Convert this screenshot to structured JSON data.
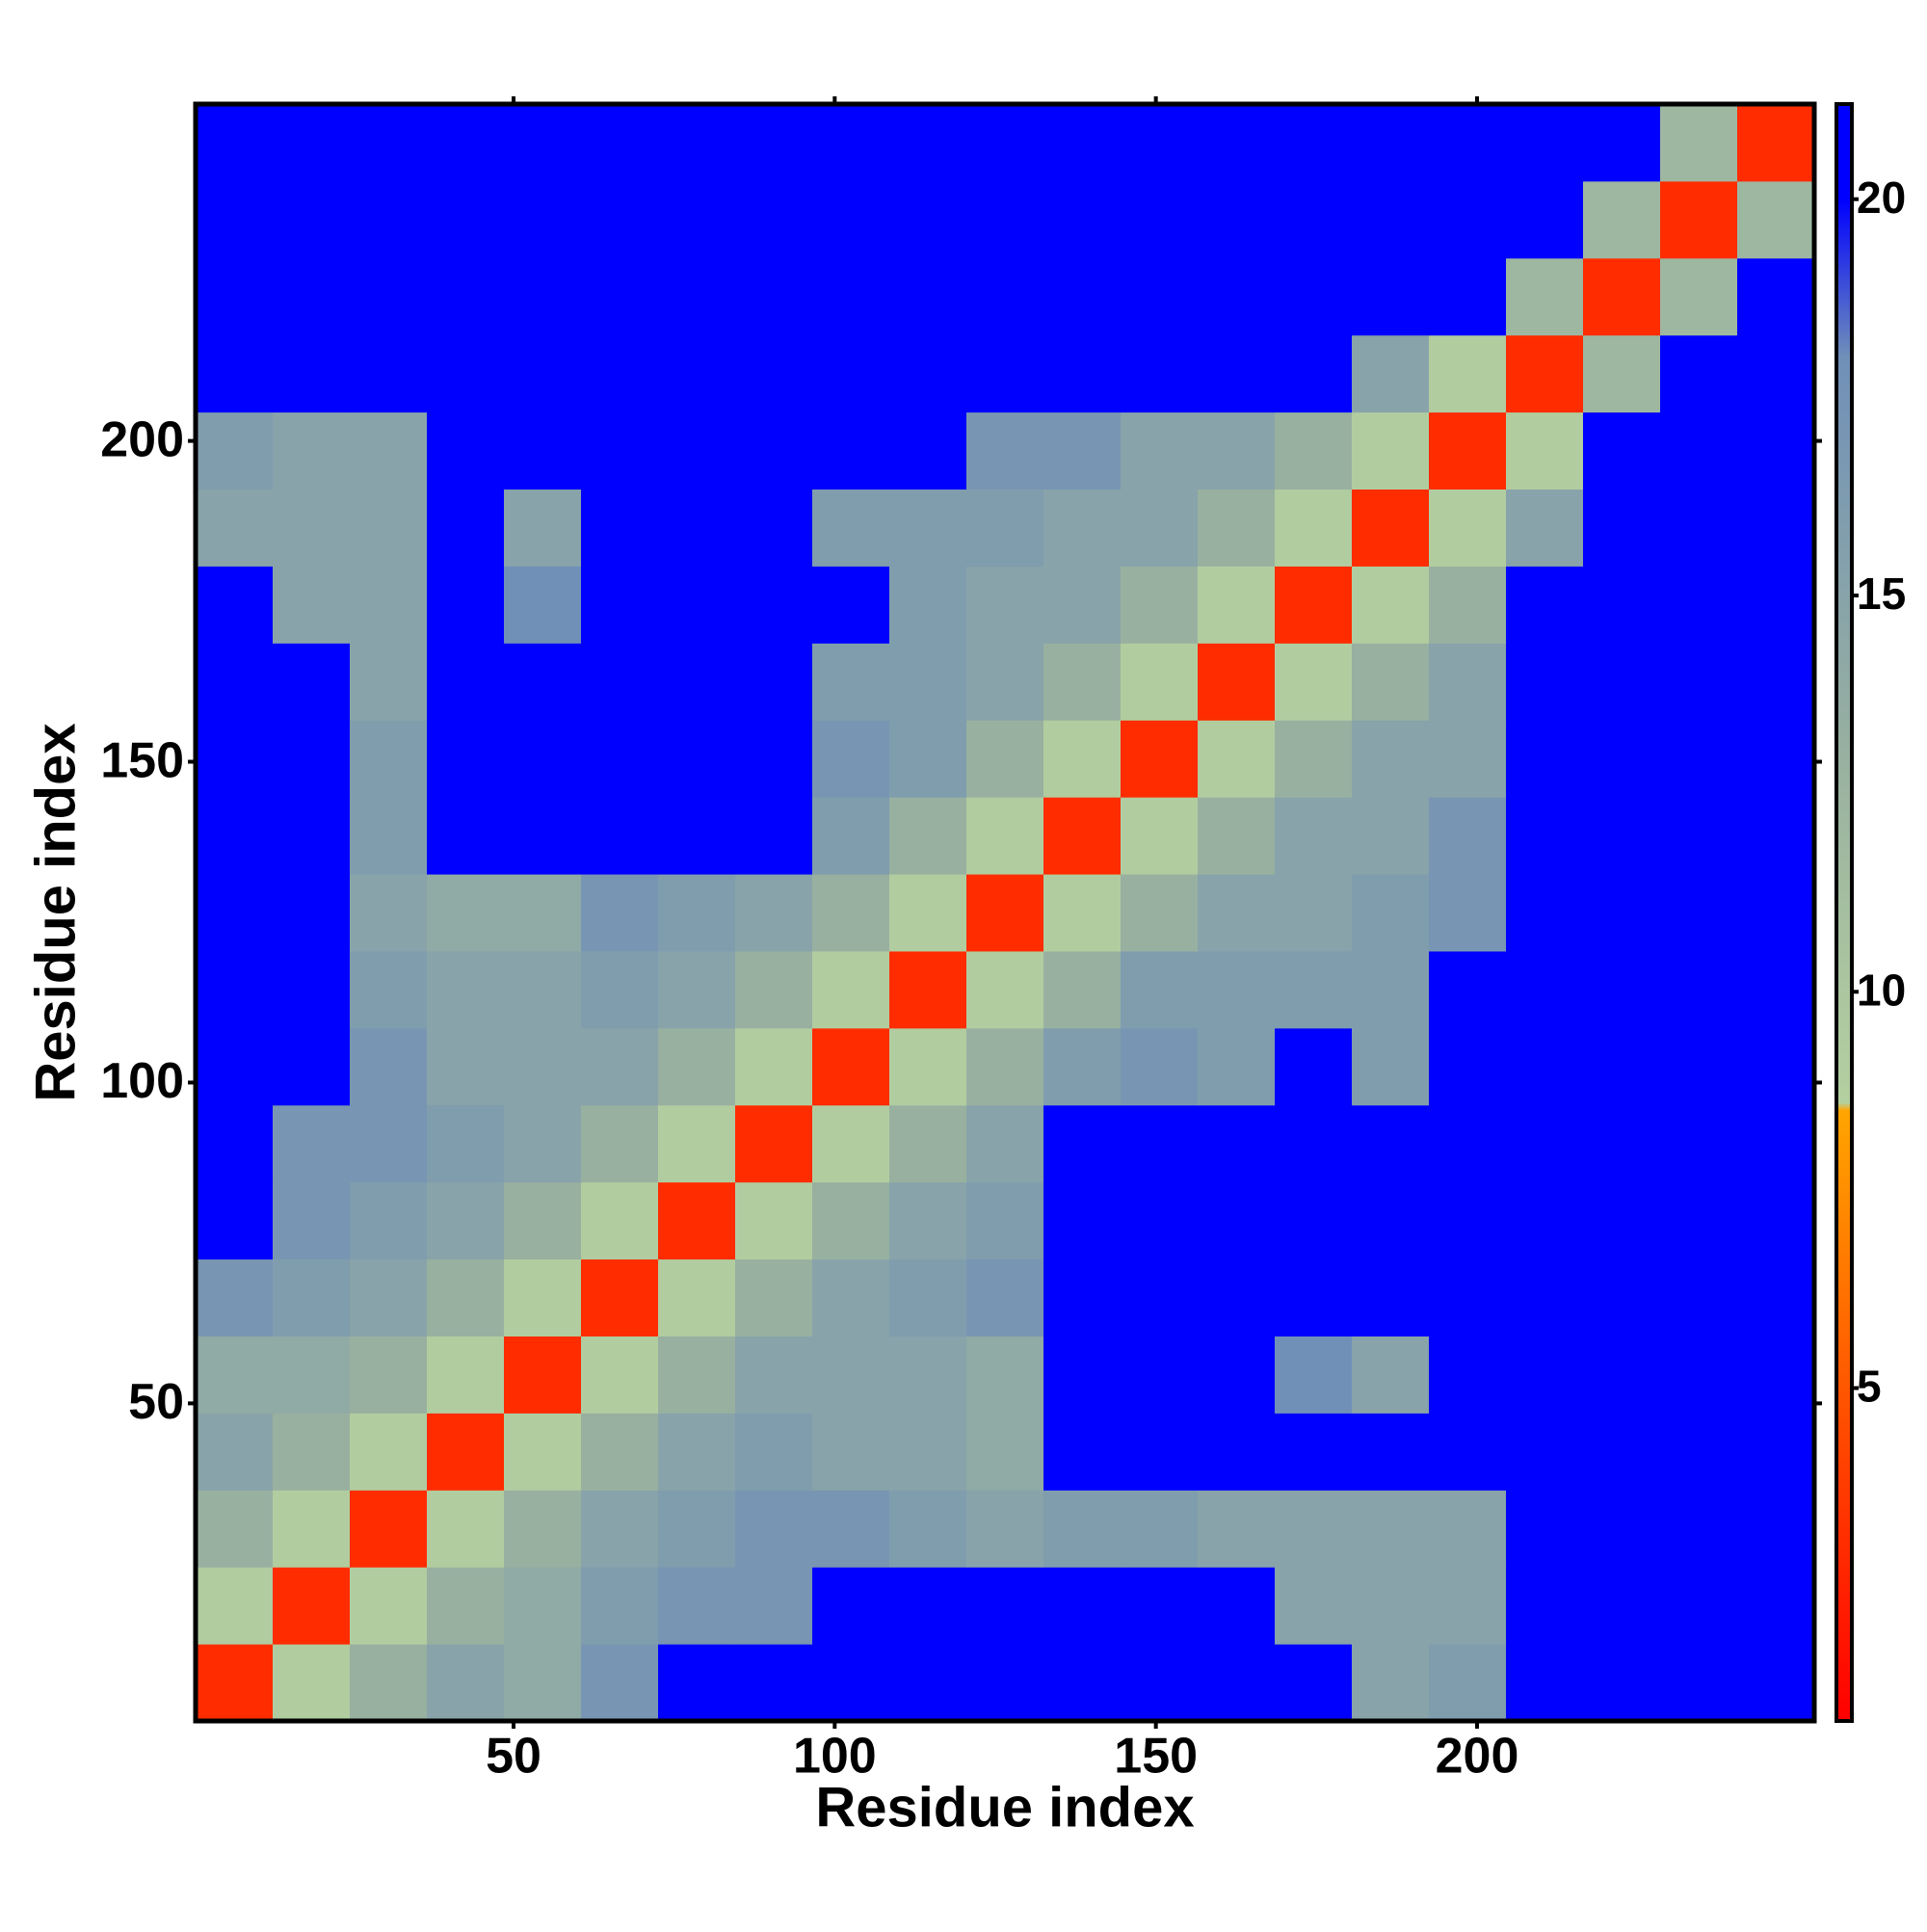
{
  "chart_data": {
    "type": "heatmap",
    "xlabel": "Residue index",
    "ylabel": "Residue index",
    "x": [
      6.5,
      18.5,
      30.5,
      42.5,
      54.5,
      66.5,
      78.5,
      90.5,
      102.5,
      114.5,
      126.5,
      138.5,
      150.5,
      162.5,
      174.5,
      186.5,
      198.5,
      210.5,
      222.5,
      234.5,
      246.5
    ],
    "y": [
      6.5,
      18.5,
      30.5,
      42.5,
      54.5,
      66.5,
      78.5,
      90.5,
      102.5,
      114.5,
      126.5,
      138.5,
      150.5,
      162.5,
      174.5,
      186.5,
      198.5,
      210.5,
      222.5,
      234.5,
      246.5
    ],
    "z": [
      [
        3,
        9,
        13,
        15,
        14,
        17,
        21,
        21,
        21,
        21,
        21,
        21,
        21,
        21,
        21,
        15,
        16,
        21,
        21,
        21,
        21
      ],
      [
        9,
        3,
        9,
        13,
        14,
        16,
        17,
        17,
        21,
        21,
        21,
        21,
        21,
        21,
        15,
        15,
        15,
        21,
        21,
        21,
        21
      ],
      [
        13,
        9,
        3,
        9,
        13,
        15,
        16,
        17,
        17,
        16,
        15,
        16,
        16,
        15,
        15,
        15,
        15,
        21,
        21,
        21,
        21
      ],
      [
        15,
        13,
        9,
        3,
        9,
        13,
        15,
        16,
        15,
        15,
        14,
        21,
        21,
        21,
        21,
        21,
        21,
        21,
        21,
        21,
        21
      ],
      [
        14,
        14,
        13,
        9,
        3,
        9,
        13,
        15,
        15,
        15,
        14,
        21,
        21,
        21,
        18,
        15,
        21,
        21,
        21,
        21,
        21
      ],
      [
        17,
        16,
        15,
        13,
        9,
        3,
        9,
        13,
        15,
        16,
        17,
        21,
        21,
        21,
        21,
        21,
        21,
        21,
        21,
        21,
        21
      ],
      [
        21,
        17,
        16,
        15,
        13,
        9,
        3,
        9,
        13,
        15,
        16,
        21,
        21,
        21,
        21,
        21,
        21,
        21,
        21,
        21,
        21
      ],
      [
        21,
        17,
        17,
        16,
        15,
        13,
        9,
        3,
        9,
        13,
        15,
        21,
        21,
        21,
        21,
        21,
        21,
        21,
        21,
        21,
        21
      ],
      [
        21,
        21,
        17,
        15,
        15,
        15,
        13,
        9,
        3,
        9,
        13,
        16,
        17,
        16,
        21,
        16,
        21,
        21,
        21,
        21,
        21
      ],
      [
        21,
        21,
        16,
        15,
        15,
        16,
        15,
        13,
        9,
        3,
        9,
        13,
        16,
        16,
        16,
        16,
        21,
        21,
        21,
        21,
        21
      ],
      [
        21,
        21,
        15,
        14,
        14,
        17,
        16,
        15,
        13,
        9,
        3,
        9,
        13,
        15,
        15,
        16,
        17,
        21,
        21,
        21,
        21
      ],
      [
        21,
        21,
        16,
        21,
        21,
        21,
        21,
        21,
        16,
        13,
        9,
        3,
        9,
        13,
        15,
        15,
        17,
        21,
        21,
        21,
        21
      ],
      [
        21,
        21,
        16,
        21,
        21,
        21,
        21,
        21,
        17,
        16,
        13,
        9,
        3,
        9,
        13,
        15,
        15,
        21,
        21,
        21,
        21
      ],
      [
        21,
        21,
        15,
        21,
        21,
        21,
        21,
        21,
        16,
        16,
        15,
        13,
        9,
        3,
        9,
        13,
        15,
        21,
        21,
        21,
        21
      ],
      [
        21,
        15,
        15,
        21,
        18,
        21,
        21,
        21,
        21,
        16,
        15,
        15,
        13,
        9,
        3,
        9,
        13,
        21,
        21,
        21,
        21
      ],
      [
        15,
        15,
        15,
        21,
        15,
        21,
        21,
        21,
        16,
        16,
        16,
        15,
        15,
        13,
        9,
        3,
        9,
        15,
        21,
        21,
        21
      ],
      [
        16,
        15,
        15,
        21,
        21,
        21,
        21,
        21,
        21,
        21,
        17,
        17,
        15,
        15,
        13,
        9,
        3,
        9,
        21,
        21,
        21
      ],
      [
        21,
        21,
        21,
        21,
        21,
        21,
        21,
        21,
        21,
        21,
        21,
        21,
        21,
        21,
        21,
        15,
        9,
        3,
        12,
        21,
        21
      ],
      [
        21,
        21,
        21,
        21,
        21,
        21,
        21,
        21,
        21,
        21,
        21,
        21,
        21,
        21,
        21,
        21,
        21,
        12,
        3,
        12,
        21
      ],
      [
        21,
        21,
        21,
        21,
        21,
        21,
        21,
        21,
        21,
        21,
        21,
        21,
        21,
        21,
        21,
        21,
        21,
        21,
        12,
        3,
        12
      ],
      [
        21,
        21,
        21,
        21,
        21,
        21,
        21,
        21,
        21,
        21,
        21,
        21,
        21,
        21,
        21,
        21,
        21,
        21,
        21,
        12,
        3
      ]
    ],
    "xlim": [
      0.5,
      252.5
    ],
    "ylim": [
      0.5,
      252.5
    ],
    "xticks": [
      50,
      100,
      150,
      200
    ],
    "yticks": [
      50,
      100,
      150,
      200
    ],
    "zlim": [
      0.8,
      21.2
    ],
    "zticks": [
      5,
      10,
      15,
      20
    ],
    "colorscale": [
      [
        0.8,
        "#ff0000"
      ],
      [
        4,
        "#ff4000"
      ],
      [
        8.5,
        "#ffa500"
      ],
      [
        8.6,
        "#b4d0a0"
      ],
      [
        13,
        "#98b0a0"
      ],
      [
        18,
        "#7090b8"
      ],
      [
        20,
        "#0000ff"
      ],
      [
        21.2,
        "#0000ff"
      ]
    ]
  }
}
